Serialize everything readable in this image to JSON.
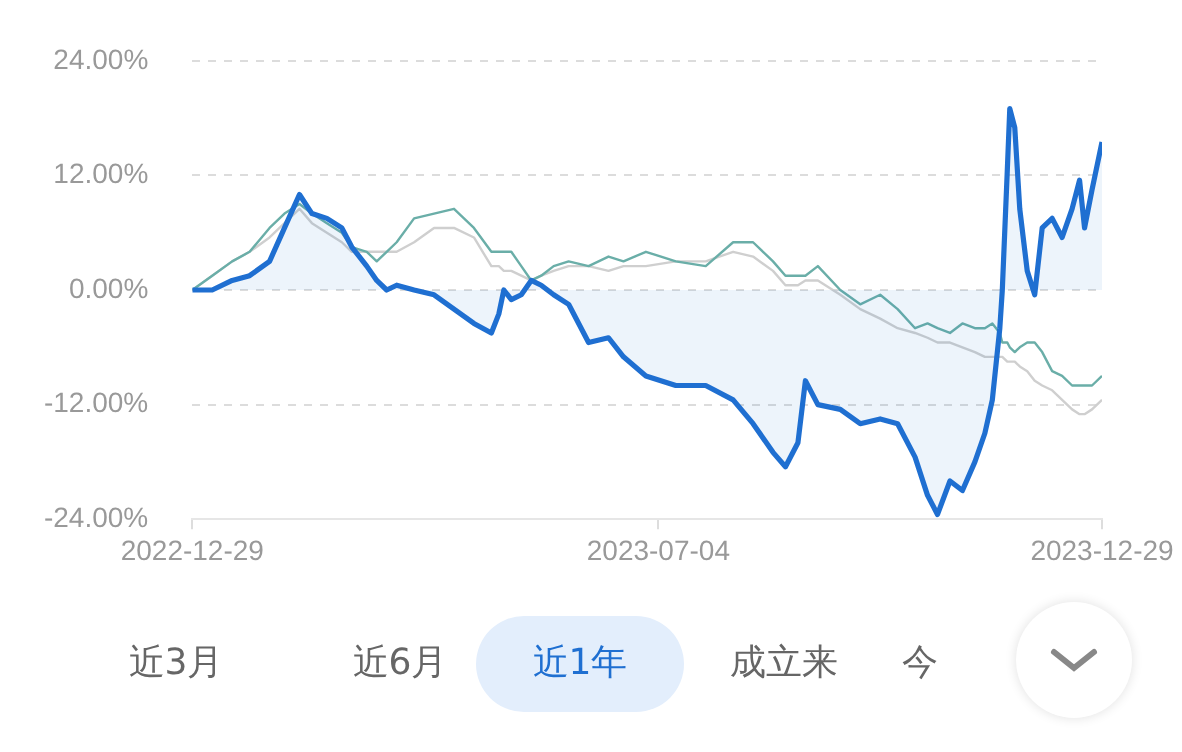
{
  "chart_data": {
    "type": "line",
    "x": [
      "2022-12-29",
      "2023-01-06",
      "2023-01-14",
      "2023-01-21",
      "2023-01-29",
      "2023-02-04",
      "2023-02-10",
      "2023-02-15",
      "2023-02-21",
      "2023-02-27",
      "2023-03-03",
      "2023-03-09",
      "2023-03-13",
      "2023-03-17",
      "2023-03-21",
      "2023-03-28",
      "2023-04-05",
      "2023-04-13",
      "2023-04-21",
      "2023-04-28",
      "2023-05-01",
      "2023-05-03",
      "2023-05-06",
      "2023-05-10",
      "2023-05-14",
      "2023-05-18",
      "2023-05-23",
      "2023-05-29",
      "2023-06-06",
      "2023-06-14",
      "2023-06-20",
      "2023-06-29",
      "2023-07-11",
      "2023-07-23",
      "2023-08-03",
      "2023-08-11",
      "2023-08-19",
      "2023-08-24",
      "2023-08-29",
      "2023-09-01",
      "2023-09-06",
      "2023-09-15",
      "2023-09-23",
      "2023-10-01",
      "2023-10-08",
      "2023-10-15",
      "2023-10-20",
      "2023-10-24",
      "2023-10-29",
      "2023-11-03",
      "2023-11-08",
      "2023-11-12",
      "2023-11-15",
      "2023-11-18",
      "2023-11-19",
      "2023-11-21",
      "2023-11-22",
      "2023-11-24",
      "2023-11-26",
      "2023-11-29",
      "2023-12-02",
      "2023-12-05",
      "2023-12-09",
      "2023-12-13",
      "2023-12-17",
      "2023-12-20",
      "2023-12-22",
      "2023-12-25",
      "2023-12-29"
    ],
    "series": [
      {
        "color": "#cfcfcf",
        "values": [
          0,
          1.5,
          3,
          4,
          5.5,
          7,
          8.5,
          7,
          6,
          5,
          4,
          4,
          4,
          4,
          4,
          5,
          6.5,
          6.5,
          5.5,
          2.5,
          2.5,
          2,
          2,
          1.5,
          1,
          1.5,
          2,
          2.5,
          2.5,
          2,
          2.5,
          2.5,
          3,
          3,
          4,
          3.5,
          2,
          0.5,
          0.5,
          1,
          1,
          -0.5,
          -2,
          -3,
          -4,
          -4.5,
          -5,
          -5.5,
          -5.5,
          -6,
          -6.5,
          -7,
          -7,
          -7,
          -7,
          -7.5,
          -7.5,
          -7.5,
          -8,
          -8.5,
          -9.5,
          -10,
          -10.5,
          -11.5,
          -12.5,
          -13,
          -13,
          -12.5,
          -11.5
        ]
      },
      {
        "color": "#6aaea8",
        "values": [
          0,
          1.5,
          3,
          4,
          6.5,
          8,
          9,
          8,
          7,
          6,
          4.5,
          4,
          3,
          4,
          5,
          7.5,
          8,
          8.5,
          6.5,
          4,
          4,
          4,
          4,
          2.5,
          1,
          1.5,
          2.5,
          3,
          2.5,
          3.5,
          3,
          4,
          3,
          2.5,
          5,
          5,
          3,
          1.5,
          1.5,
          1.5,
          2.5,
          0,
          -1.5,
          -0.5,
          -2,
          -4,
          -3.5,
          -4,
          -4.5,
          -3.5,
          -4,
          -4,
          -3.5,
          -4.5,
          -5.5,
          -5.5,
          -6,
          -6.5,
          -6,
          -5.5,
          -5.5,
          -6.5,
          -8.5,
          -9,
          -10,
          -10,
          -10,
          -10,
          -9
        ]
      },
      {
        "type": "area",
        "color": "#1f6fd1",
        "values": [
          0,
          0,
          1,
          1.5,
          3,
          6.5,
          10,
          8,
          7.5,
          6.5,
          4.5,
          2.5,
          1,
          0,
          0.5,
          0,
          -0.5,
          -2,
          -3.5,
          -4.5,
          -2.5,
          0,
          -1,
          -0.5,
          1,
          0.5,
          -0.5,
          -1.5,
          -5.5,
          -5,
          -7,
          -9,
          -10,
          -10,
          -11.5,
          -14,
          -17,
          -18.5,
          -16,
          -9.5,
          -12,
          -12.5,
          -14,
          -13.5,
          -14,
          -17.5,
          -21.5,
          -23.5,
          -20,
          -21,
          -18,
          -15,
          -11.5,
          -4,
          0,
          12.5,
          19,
          17,
          8.5,
          2,
          -0.5,
          6.5,
          7.5,
          5.5,
          8.5,
          11.5,
          6.5,
          10.5,
          15.5
        ]
      }
    ],
    "xlim": [
      "2022-12-29",
      "2023-12-29"
    ],
    "xticks": [
      "2022-12-29",
      "2023-07-04",
      "2023-12-29"
    ],
    "ylim": [
      -24,
      24
    ],
    "yticks": [
      {
        "value": -24,
        "label": "-24.00%"
      },
      {
        "value": -12,
        "label": "-12.00%"
      },
      {
        "value": 0,
        "label": "0.00%"
      },
      {
        "value": 12,
        "label": "12.00%"
      },
      {
        "value": 24,
        "label": "24.00%"
      }
    ],
    "grid": "y",
    "legend": false,
    "marker": "none",
    "line_style": "solid",
    "annotations": [
      "近3月",
      "近6月",
      "近1年",
      "成立来",
      "今"
    ]
  }
}
